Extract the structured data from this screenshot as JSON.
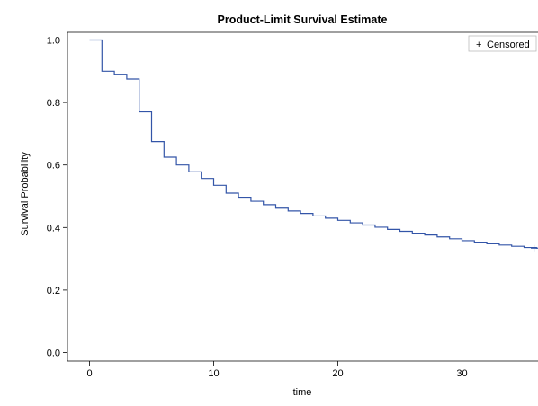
{
  "chart_data": {
    "type": "line",
    "title": "Product-Limit Survival Estimate",
    "xlabel": "time",
    "ylabel": "Survival Probability",
    "xlim": [
      -2,
      36
    ],
    "ylim": [
      -0.02,
      1.04
    ],
    "x_ticks": [
      0,
      10,
      20,
      30
    ],
    "y_ticks": [
      0.0,
      0.2,
      0.4,
      0.6,
      0.8,
      1.0
    ],
    "y_tick_labels": [
      "0.0",
      "0.2",
      "0.4",
      "0.6",
      "0.8",
      "1.0"
    ],
    "x_tick_labels": [
      "0",
      "10",
      "20",
      "30"
    ],
    "grid": false,
    "legend": {
      "position": "top-right",
      "entries": [
        {
          "symbol": "+",
          "label": "Censored"
        }
      ]
    },
    "line_color": "#3355a8",
    "series": [
      {
        "step": true,
        "x": [
          0,
          1,
          2,
          3,
          4,
          5,
          6,
          7,
          8,
          9,
          10,
          11,
          12,
          13,
          14,
          15,
          16,
          17,
          18,
          19,
          20,
          21,
          22,
          23,
          24,
          25,
          26,
          27,
          28,
          29,
          30,
          31,
          32,
          33,
          34,
          35,
          36
        ],
        "y": [
          1.0,
          0.9,
          0.89,
          0.875,
          0.77,
          0.675,
          0.625,
          0.6,
          0.578,
          0.557,
          0.535,
          0.51,
          0.497,
          0.484,
          0.473,
          0.462,
          0.453,
          0.445,
          0.437,
          0.43,
          0.423,
          0.415,
          0.408,
          0.401,
          0.394,
          0.388,
          0.382,
          0.376,
          0.37,
          0.364,
          0.358,
          0.353,
          0.348,
          0.344,
          0.34,
          0.336,
          0.334
        ]
      }
    ],
    "censored": [
      {
        "x": 35.8,
        "y": 0.334
      }
    ]
  }
}
